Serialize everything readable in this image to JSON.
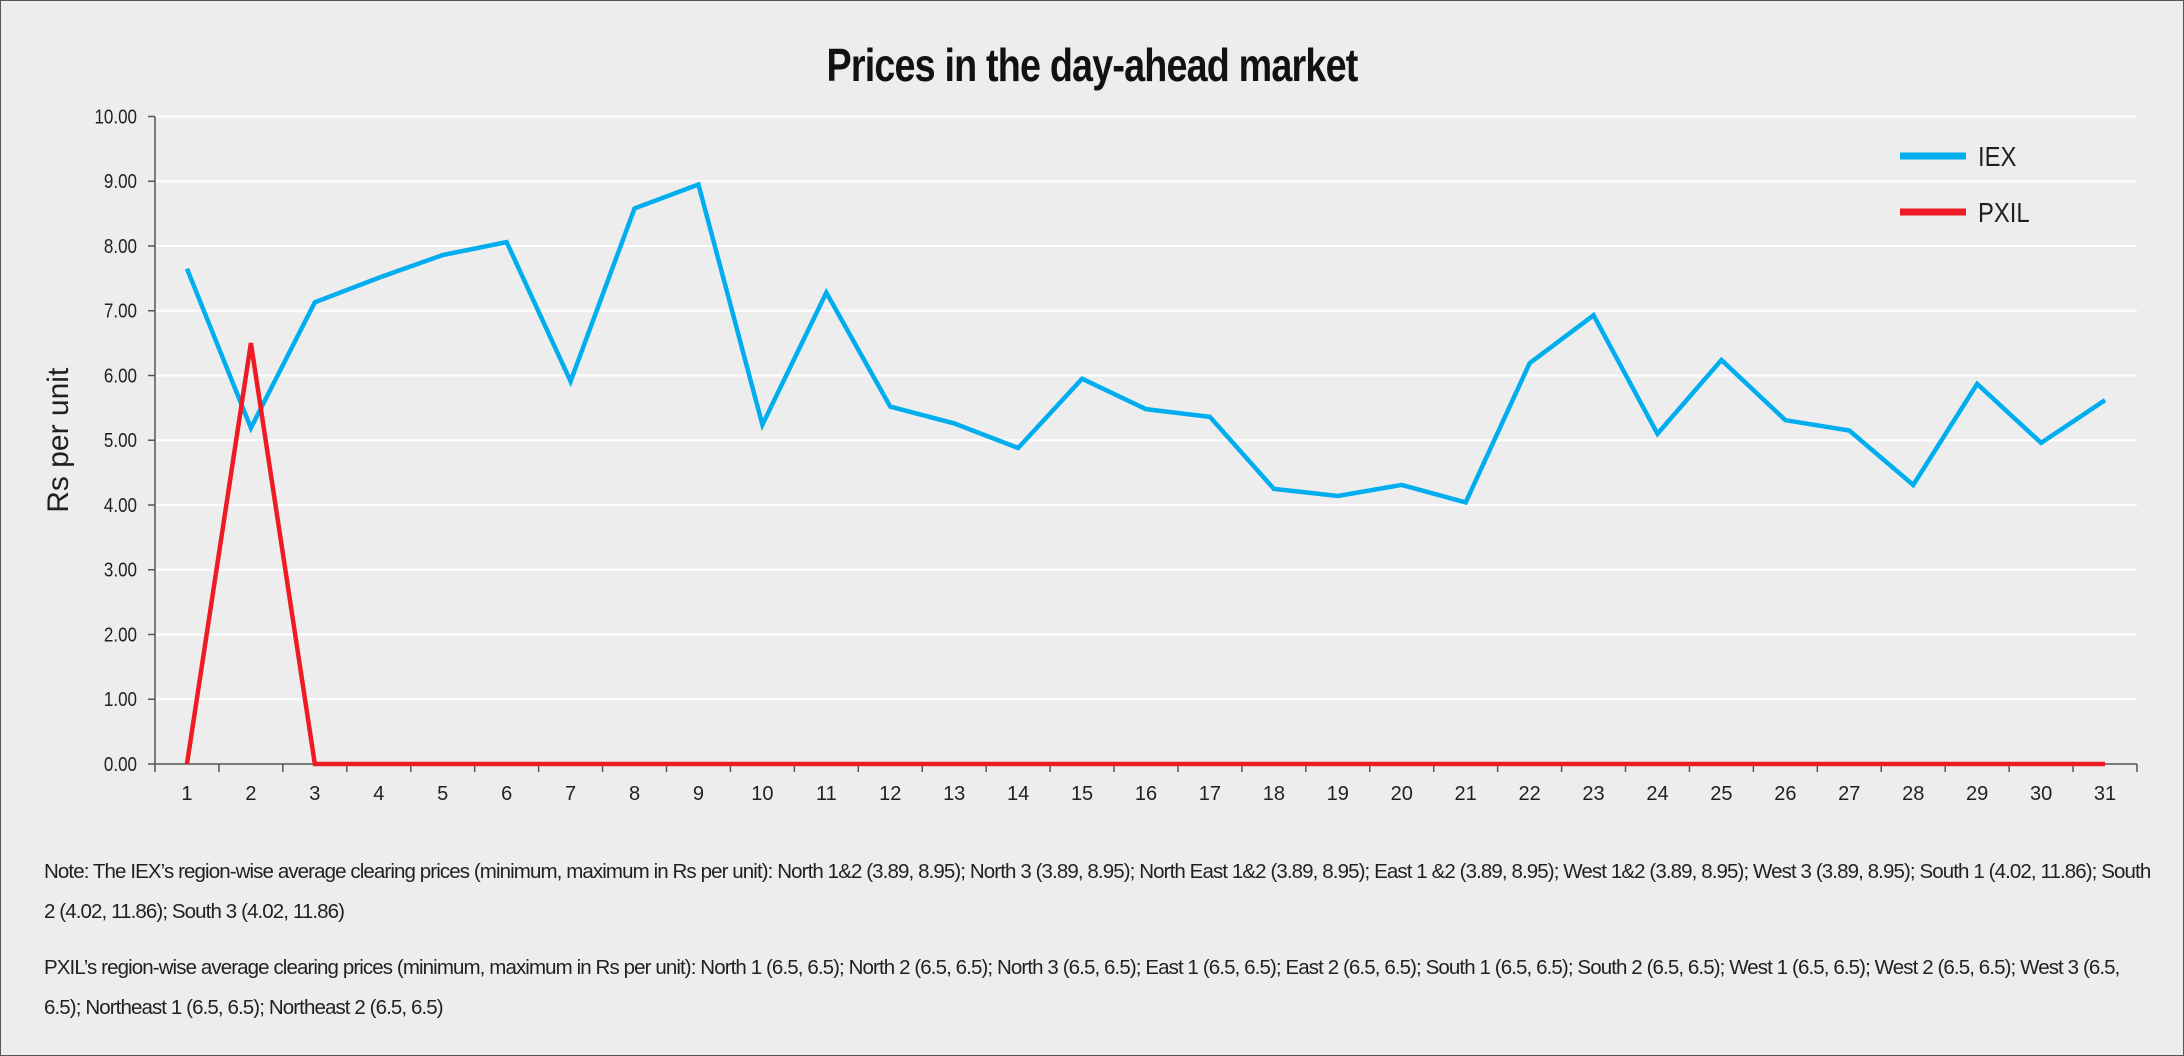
{
  "chart_data": {
    "type": "line",
    "title": "Prices in the day-ahead market",
    "xlabel": "",
    "ylabel": "Rs per unit",
    "ylim": [
      0,
      10
    ],
    "yticks": [
      "0.00",
      "1.00",
      "2.00",
      "3.00",
      "4.00",
      "5.00",
      "6.00",
      "7.00",
      "8.00",
      "9.00",
      "10.00"
    ],
    "categories": [
      "1",
      "2",
      "3",
      "4",
      "5",
      "6",
      "7",
      "8",
      "9",
      "10",
      "11",
      "12",
      "13",
      "14",
      "15",
      "16",
      "17",
      "18",
      "19",
      "20",
      "21",
      "22",
      "23",
      "24",
      "25",
      "26",
      "27",
      "28",
      "29",
      "30",
      "31"
    ],
    "grid": true,
    "legend_position": "top-right",
    "series": [
      {
        "name": "IEX",
        "color": "#00aeef",
        "values": [
          7.65,
          5.19,
          7.13,
          7.51,
          7.86,
          8.06,
          5.91,
          8.58,
          8.95,
          5.24,
          7.28,
          5.52,
          5.26,
          4.88,
          5.95,
          5.48,
          5.36,
          4.25,
          4.14,
          4.31,
          4.04,
          6.19,
          6.93,
          5.1,
          6.24,
          5.31,
          5.15,
          4.31,
          5.87,
          4.96,
          5.62
        ]
      },
      {
        "name": "PXIL",
        "color": "#ed1c24",
        "values": [
          0,
          6.5,
          0,
          0,
          0,
          0,
          0,
          0,
          0,
          0,
          0,
          0,
          0,
          0,
          0,
          0,
          0,
          0,
          0,
          0,
          0,
          0,
          0,
          0,
          0,
          0,
          0,
          0,
          0,
          0,
          0
        ]
      }
    ]
  },
  "notes": {
    "iex": "Note: The IEX’s region-wise average clearing prices (minimum, maximum in Rs per unit):  North 1&2 (3.89, 8.95); North 3 (3.89, 8.95); North East 1&2 (3.89, 8.95); East 1 &2 (3.89, 8.95); West 1&2 (3.89, 8.95); West 3 (3.89, 8.95); South 1 (4.02, 11.86); South 2 (4.02, 11.86); South 3 (4.02, 11.86)",
    "pxil": "PXIL’s region-wise average clearing prices (minimum, maximum in Rs per unit):  North 1 (6.5, 6.5); North 2 (6.5, 6.5); North 3 (6.5, 6.5); East 1 (6.5, 6.5); East 2 (6.5, 6.5); South 1 (6.5, 6.5); South 2 (6.5, 6.5); West 1 (6.5, 6.5); West 2 (6.5, 6.5); West 3 (6.5, 6.5); Northeast 1 (6.5, 6.5); Northeast 2 (6.5, 6.5)"
  }
}
